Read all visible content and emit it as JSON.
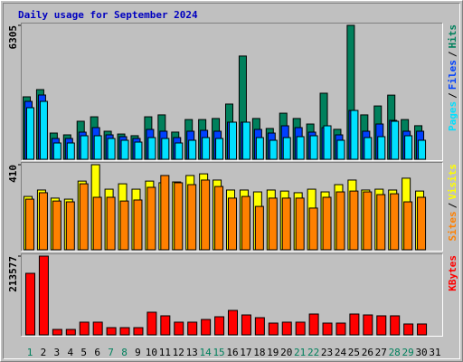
{
  "chart_data": [
    {
      "type": "bar",
      "title": "Daily usage for September 2024",
      "title_color": "#0000c0",
      "ylim": [
        0,
        6305
      ],
      "yticks": [
        6305
      ],
      "series": [
        {
          "name": "Hits",
          "color": "#00805c",
          "values": [
            2940,
            3280,
            1235,
            1150,
            1790,
            2000,
            1320,
            1190,
            1110,
            2000,
            2090,
            1280,
            1870,
            1870,
            1920,
            2600,
            4860,
            1920,
            1450,
            2170,
            1920,
            1660,
            3110,
            1410,
            6305,
            2090,
            2510,
            3020,
            1870,
            1580,
            null
          ]
        },
        {
          "name": "Files",
          "color": "#0040ff",
          "values": [
            2726,
            3025,
            980,
            980,
            1278,
            1491,
            1150,
            1065,
            980,
            1406,
            1321,
            1022,
            1321,
            1363,
            1321,
            1747,
            1747,
            1406,
            1235,
            1576,
            1491,
            1278,
            1491,
            1150,
            2300,
            1321,
            1661,
            1832,
            1321,
            1321,
            null
          ]
        },
        {
          "name": "Pages",
          "color": "#00e0ff",
          "values": [
            2428,
            2726,
            767,
            767,
            1108,
            1108,
            980,
            895,
            809,
            1022,
            980,
            767,
            895,
            1022,
            980,
            1747,
            1747,
            1022,
            895,
            1022,
            1065,
            1108,
            1576,
            895,
            2300,
            1022,
            1065,
            1789,
            1108,
            895,
            null
          ]
        }
      ],
      "legend_separator": "/"
    },
    {
      "type": "bar",
      "ylim": [
        0,
        410
      ],
      "yticks": [
        410
      ],
      "series": [
        {
          "name": "Visits",
          "color": "#ffff00",
          "values": [
            257,
            288,
            249,
            244,
            331,
            410,
            292,
            318,
            292,
            331,
            323,
            327,
            358,
            366,
            336,
            288,
            288,
            279,
            288,
            283,
            275,
            292,
            279,
            314,
            336,
            288,
            292,
            288,
            345,
            283,
            null
          ]
        },
        {
          "name": "Sites",
          "color": "#ff8000",
          "values": [
            244,
            275,
            235,
            231,
            318,
            253,
            253,
            235,
            240,
            301,
            358,
            323,
            314,
            336,
            305,
            249,
            257,
            209,
            249,
            249,
            249,
            201,
            253,
            279,
            283,
            279,
            266,
            270,
            231,
            253,
            null
          ]
        }
      ],
      "legend_separator": "/"
    },
    {
      "type": "bar",
      "ylim": [
        0,
        213577
      ],
      "yticks": [
        213577
      ],
      "series": [
        {
          "name": "KBytes",
          "color": "#ff0000",
          "values": [
            166900,
            213577,
            14700,
            14700,
            34400,
            34400,
            19600,
            19600,
            19600,
            61400,
            51600,
            34400,
            34400,
            41700,
            49100,
            66300,
            54000,
            46600,
            31900,
            34400,
            34400,
            56500,
            31900,
            31900,
            56500,
            54000,
            51600,
            51600,
            29500,
            29500,
            null
          ]
        }
      ],
      "categories": [
        "1",
        "2",
        "3",
        "4",
        "5",
        "6",
        "7",
        "8",
        "9",
        "10",
        "11",
        "12",
        "13",
        "14",
        "15",
        "16",
        "17",
        "18",
        "19",
        "20",
        "21",
        "22",
        "23",
        "24",
        "25",
        "26",
        "27",
        "28",
        "29",
        "30",
        "31"
      ],
      "category_colors": [
        "#00805c",
        "#000000",
        "#000000",
        "#000000",
        "#000000",
        "#000000",
        "#00805c",
        "#00805c",
        "#000000",
        "#000000",
        "#000000",
        "#000000",
        "#000000",
        "#00805c",
        "#00805c",
        "#000000",
        "#000000",
        "#000000",
        "#000000",
        "#000000",
        "#00805c",
        "#00805c",
        "#000000",
        "#000000",
        "#000000",
        "#000000",
        "#000000",
        "#00805c",
        "#00805c",
        "#000000",
        "#000000"
      ]
    }
  ]
}
